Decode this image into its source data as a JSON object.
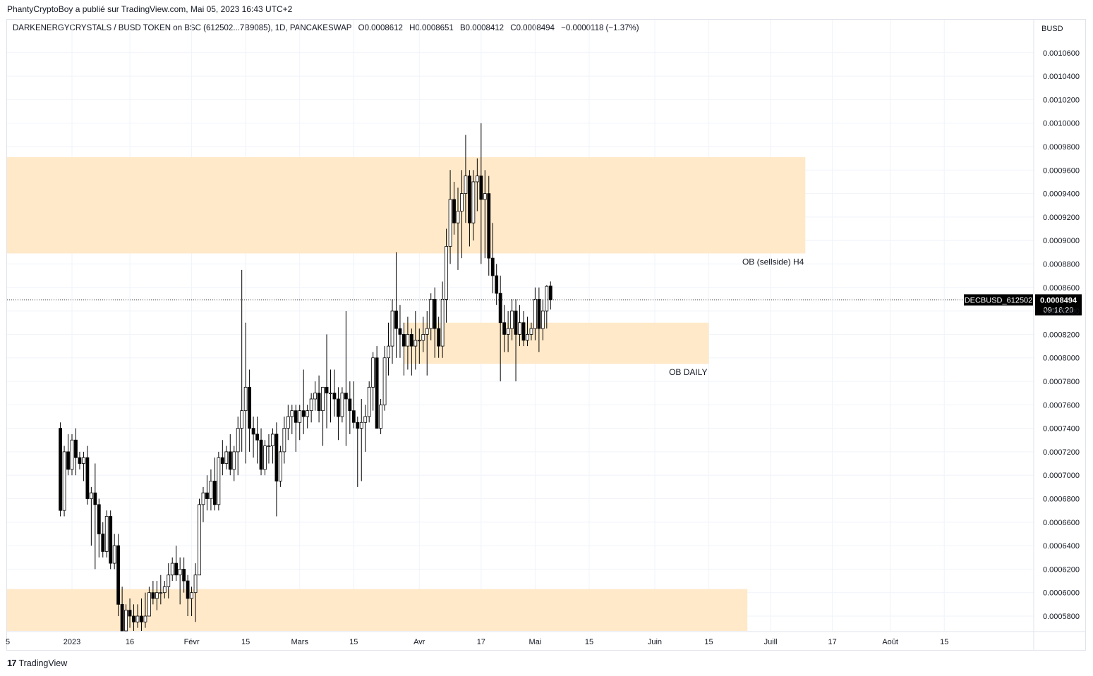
{
  "caption": "PhantyCryptoBoy a publié sur TradingView.com, Mai 05, 2023 16:43 UTC+2",
  "legend": {
    "symbol": "DARKENERGYCRYSTALS / BUSD TOKEN on BSC (612502...7B9085), 1D, PANCAKESWAP",
    "open": "O0.0008612",
    "high": "H0.0008651",
    "low": "B0.0008412",
    "close": "C0.0008494",
    "change": "−0.0000118 (−1.37%)"
  },
  "brand": "TradingView",
  "colors": {
    "zone": "#ffe9c9",
    "candle_up": "#ffffff",
    "candle_down": "#000000",
    "wick": "#000000",
    "grid": "#f0f3fa"
  },
  "chart_data": {
    "type": "candlestick",
    "currency_label": "BUSD",
    "y_ticks": [
      0.00058,
      0.0006,
      0.00062,
      0.00064,
      0.00066,
      0.00068,
      0.0007,
      0.00072,
      0.00074,
      0.00076,
      0.00078,
      0.0008,
      0.00082,
      0.00084,
      0.00086,
      0.00088,
      0.0009,
      0.00092,
      0.00094,
      0.00096,
      0.00098,
      0.001,
      0.00102,
      0.00104,
      0.00106
    ],
    "y_tick_labels": [
      "0.0005800",
      "0.0006000",
      "0.0006200",
      "0.0006400",
      "0.0006600",
      "0.0006800",
      "0.0007000",
      "0.0007200",
      "0.0007400",
      "0.0007600",
      "0.0007800",
      "0.0008000",
      "0.0008200",
      "0.0008400",
      "0.0008600",
      "0.0008800",
      "0.0009000",
      "0.0009200",
      "0.0009400",
      "0.0009600",
      "0.0009800",
      "0.0010000",
      "0.0010200",
      "0.0010400",
      "0.0010600"
    ],
    "x_ticks": [
      {
        "label": "5",
        "day": -27
      },
      {
        "label": "2023",
        "day": 0
      },
      {
        "label": "16",
        "day": 15
      },
      {
        "label": "Févr",
        "day": 31
      },
      {
        "label": "15",
        "day": 45
      },
      {
        "label": "Mars",
        "day": 59
      },
      {
        "label": "15",
        "day": 73
      },
      {
        "label": "Avr",
        "day": 90
      },
      {
        "label": "17",
        "day": 106
      },
      {
        "label": "Mai",
        "day": 120
      },
      {
        "label": "15",
        "day": 134
      },
      {
        "label": "Juin",
        "day": 151
      },
      {
        "label": "15",
        "day": 165
      },
      {
        "label": "Juill",
        "day": 181
      },
      {
        "label": "17",
        "day": 197
      },
      {
        "label": "Août",
        "day": 212
      },
      {
        "label": "15",
        "day": 226
      }
    ],
    "current_price": {
      "ticker": "DECBUSD_612502",
      "value": "0.0008494",
      "countdown": "09:16:20"
    },
    "zones": [
      {
        "label": "OB (sellside) H4",
        "from_day": -27,
        "to_day": 190,
        "low": 0.000889,
        "high": 0.000971
      },
      {
        "label": "OB DAILY",
        "from_day": 86,
        "to_day": 165,
        "low": 0.000795,
        "high": 0.00083
      },
      {
        "label": "",
        "from_day": -27,
        "to_day": 175,
        "low": 0.0005645,
        "high": 0.000603
      }
    ],
    "candles": [
      [
        0.00074,
        0.000745,
        0.000665,
        0.00067
      ],
      [
        0.00067,
        0.000725,
        0.000665,
        0.00072
      ],
      [
        0.00072,
        0.000735,
        0.0007,
        0.000705
      ],
      [
        0.000705,
        0.000735,
        0.0007,
        0.00073
      ],
      [
        0.00073,
        0.00074,
        0.0007,
        0.000715
      ],
      [
        0.000715,
        0.00072,
        0.000705,
        0.00071
      ],
      [
        0.00071,
        0.00072,
        0.000695,
        0.000715
      ],
      [
        0.000715,
        0.000725,
        0.000675,
        0.00068
      ],
      [
        0.00068,
        0.00069,
        0.00064,
        0.000685
      ],
      [
        0.000685,
        0.00071,
        0.00062,
        0.000675
      ],
      [
        0.000675,
        0.00068,
        0.00063,
        0.00065
      ],
      [
        0.00065,
        0.00066,
        0.00063,
        0.000635
      ],
      [
        0.000635,
        0.00067,
        0.00063,
        0.000665
      ],
      [
        0.000665,
        0.00067,
        0.00062,
        0.000625
      ],
      [
        0.000625,
        0.00065,
        0.00062,
        0.00064
      ],
      [
        0.00064,
        0.00065,
        0.00058,
        0.00059
      ],
      [
        0.00059,
        0.000605,
        0.00056,
        0.000565
      ],
      [
        0.000565,
        0.00059,
        0.000555,
        0.000585
      ],
      [
        0.000585,
        0.000595,
        0.00057,
        0.00058
      ],
      [
        0.00058,
        0.00059,
        0.00056,
        0.000575
      ],
      [
        0.000575,
        0.00059,
        0.00057,
        0.00058
      ],
      [
        0.00058,
        0.000595,
        0.000565,
        0.000575
      ],
      [
        0.000575,
        0.0006,
        0.00057,
        0.00058
      ],
      [
        0.00058,
        0.000605,
        0.00058,
        0.0006
      ],
      [
        0.0006,
        0.00061,
        0.00059,
        0.000595
      ],
      [
        0.000595,
        0.00061,
        0.000585,
        0.0006
      ],
      [
        0.0006,
        0.000615,
        0.00059,
        0.0006
      ],
      [
        0.0006,
        0.00061,
        0.000595,
        0.000605
      ],
      [
        0.000605,
        0.000625,
        0.000595,
        0.000615
      ],
      [
        0.000615,
        0.00063,
        0.00061,
        0.000625
      ],
      [
        0.000625,
        0.00064,
        0.00061,
        0.000615
      ],
      [
        0.000615,
        0.00063,
        0.00059,
        0.00062
      ],
      [
        0.00062,
        0.00063,
        0.0006,
        0.00061
      ],
      [
        0.00061,
        0.000615,
        0.00058,
        0.000595
      ],
      [
        0.000595,
        0.000605,
        0.00058,
        0.0006
      ],
      [
        0.0006,
        0.000625,
        0.000575,
        0.000615
      ],
      [
        0.000615,
        0.00068,
        0.000615,
        0.000675
      ],
      [
        0.000675,
        0.00069,
        0.00066,
        0.000685
      ],
      [
        0.000685,
        0.0007,
        0.00067,
        0.00068
      ],
      [
        0.00068,
        0.000705,
        0.00067,
        0.000695
      ],
      [
        0.000695,
        0.000715,
        0.00067,
        0.000675
      ],
      [
        0.000675,
        0.00072,
        0.00067,
        0.000715
      ],
      [
        0.000715,
        0.00073,
        0.0007,
        0.00071
      ],
      [
        0.00071,
        0.000725,
        0.000705,
        0.00072
      ],
      [
        0.00072,
        0.000735,
        0.0007,
        0.000705
      ],
      [
        0.000705,
        0.000725,
        0.000695,
        0.00072
      ],
      [
        0.00072,
        0.00075,
        0.0007,
        0.00074
      ],
      [
        0.00074,
        0.000875,
        0.00072,
        0.000755
      ],
      [
        0.000755,
        0.00083,
        0.00071,
        0.000775
      ],
      [
        0.000775,
        0.00079,
        0.00072,
        0.00074
      ],
      [
        0.00074,
        0.00075,
        0.000715,
        0.000735
      ],
      [
        0.000735,
        0.00075,
        0.00071,
        0.00073
      ],
      [
        0.00073,
        0.00074,
        0.0007,
        0.000705
      ],
      [
        0.000705,
        0.00073,
        0.0007,
        0.000725
      ],
      [
        0.000725,
        0.000735,
        0.00071,
        0.000725
      ],
      [
        0.000725,
        0.00074,
        0.00071,
        0.000735
      ],
      [
        0.000735,
        0.000745,
        0.000665,
        0.000695
      ],
      [
        0.000695,
        0.000725,
        0.00069,
        0.00072
      ],
      [
        0.00072,
        0.00075,
        0.00071,
        0.00074
      ],
      [
        0.00074,
        0.00076,
        0.00073,
        0.00075
      ],
      [
        0.00075,
        0.00076,
        0.000735,
        0.000755
      ],
      [
        0.000755,
        0.00076,
        0.00072,
        0.000745
      ],
      [
        0.000745,
        0.00076,
        0.00073,
        0.000755
      ],
      [
        0.000755,
        0.00079,
        0.000735,
        0.00075
      ],
      [
        0.00075,
        0.00076,
        0.00074,
        0.000755
      ],
      [
        0.000755,
        0.00077,
        0.000745,
        0.000765
      ],
      [
        0.000765,
        0.00078,
        0.000755,
        0.00077
      ],
      [
        0.00077,
        0.000785,
        0.000745,
        0.000755
      ],
      [
        0.000755,
        0.000775,
        0.000725,
        0.000775
      ],
      [
        0.000775,
        0.00082,
        0.00074,
        0.00077
      ],
      [
        0.00077,
        0.00079,
        0.000745,
        0.00077
      ],
      [
        0.00077,
        0.00079,
        0.00075,
        0.000765
      ],
      [
        0.000765,
        0.000775,
        0.00073,
        0.00075
      ],
      [
        0.00075,
        0.000775,
        0.000745,
        0.00077
      ],
      [
        0.00077,
        0.00084,
        0.000725,
        0.000765
      ],
      [
        0.000765,
        0.00078,
        0.000735,
        0.000755
      ],
      [
        0.000755,
        0.00078,
        0.00074,
        0.000745
      ],
      [
        0.000745,
        0.00075,
        0.00069,
        0.00074
      ],
      [
        0.00074,
        0.000765,
        0.000695,
        0.000745
      ],
      [
        0.000745,
        0.00076,
        0.00072,
        0.00075
      ],
      [
        0.00075,
        0.00078,
        0.000745,
        0.000775
      ],
      [
        0.000775,
        0.000805,
        0.000755,
        0.0008
      ],
      [
        0.0008,
        0.00081,
        0.00074,
        0.00074
      ],
      [
        0.00074,
        0.000765,
        0.000735,
        0.00076
      ],
      [
        0.00076,
        0.00081,
        0.000755,
        0.0008
      ],
      [
        0.0008,
        0.00083,
        0.000785,
        0.00081
      ],
      [
        0.00081,
        0.00085,
        0.000795,
        0.00084
      ],
      [
        0.00084,
        0.00089,
        0.0008,
        0.000825
      ],
      [
        0.000825,
        0.000845,
        0.0008,
        0.00082
      ],
      [
        0.00082,
        0.00083,
        0.000785,
        0.00081
      ],
      [
        0.00081,
        0.000835,
        0.00079,
        0.00082
      ],
      [
        0.00082,
        0.000825,
        0.000785,
        0.00081
      ],
      [
        0.00081,
        0.00084,
        0.00079,
        0.000815
      ],
      [
        0.000815,
        0.000825,
        0.000795,
        0.000815
      ],
      [
        0.000815,
        0.000835,
        0.000805,
        0.00082
      ],
      [
        0.00082,
        0.00084,
        0.000785,
        0.000825
      ],
      [
        0.000825,
        0.000855,
        0.000815,
        0.00085
      ],
      [
        0.00085,
        0.00086,
        0.0008,
        0.000825
      ],
      [
        0.000825,
        0.000835,
        0.0008,
        0.00081
      ],
      [
        0.00081,
        0.000865,
        0.0008,
        0.00085
      ],
      [
        0.00085,
        0.00091,
        0.00083,
        0.000895
      ],
      [
        0.000895,
        0.00096,
        0.00088,
        0.000935
      ],
      [
        0.000935,
        0.00095,
        0.000905,
        0.000915
      ],
      [
        0.000915,
        0.000945,
        0.000875,
        0.000925
      ],
      [
        0.000925,
        0.00096,
        0.000885,
        0.00094
      ],
      [
        0.00094,
        0.00099,
        0.000915,
        0.000955
      ],
      [
        0.000955,
        0.00096,
        0.000895,
        0.000915
      ],
      [
        0.000915,
        0.00096,
        0.0009,
        0.00095
      ],
      [
        0.00095,
        0.00097,
        0.000925,
        0.000955
      ],
      [
        0.000955,
        0.001,
        0.00088,
        0.000935
      ],
      [
        0.000935,
        0.00096,
        0.000885,
        0.00094
      ],
      [
        0.00094,
        0.000955,
        0.00087,
        0.000885
      ],
      [
        0.000885,
        0.000915,
        0.000855,
        0.00087
      ],
      [
        0.00087,
        0.00088,
        0.000845,
        0.000855
      ],
      [
        0.000855,
        0.00087,
        0.00078,
        0.00083
      ],
      [
        0.00083,
        0.000845,
        0.000805,
        0.00082
      ],
      [
        0.00082,
        0.00084,
        0.000805,
        0.000825
      ],
      [
        0.000825,
        0.00085,
        0.000815,
        0.00084
      ],
      [
        0.00084,
        0.00085,
        0.00078,
        0.00082
      ],
      [
        0.00082,
        0.000845,
        0.00081,
        0.00083
      ],
      [
        0.00083,
        0.00084,
        0.00081,
        0.000815
      ],
      [
        0.000815,
        0.000835,
        0.00081,
        0.00082
      ],
      [
        0.00082,
        0.00083,
        0.000815,
        0.000825
      ],
      [
        0.000825,
        0.00086,
        0.000815,
        0.00085
      ],
      [
        0.00085,
        0.00086,
        0.000805,
        0.000825
      ],
      [
        0.000825,
        0.00085,
        0.000815,
        0.00084
      ],
      [
        0.00084,
        0.000862,
        0.000825,
        0.000861
      ],
      [
        0.0008612,
        0.0008651,
        0.0008412,
        0.0008494
      ]
    ]
  }
}
